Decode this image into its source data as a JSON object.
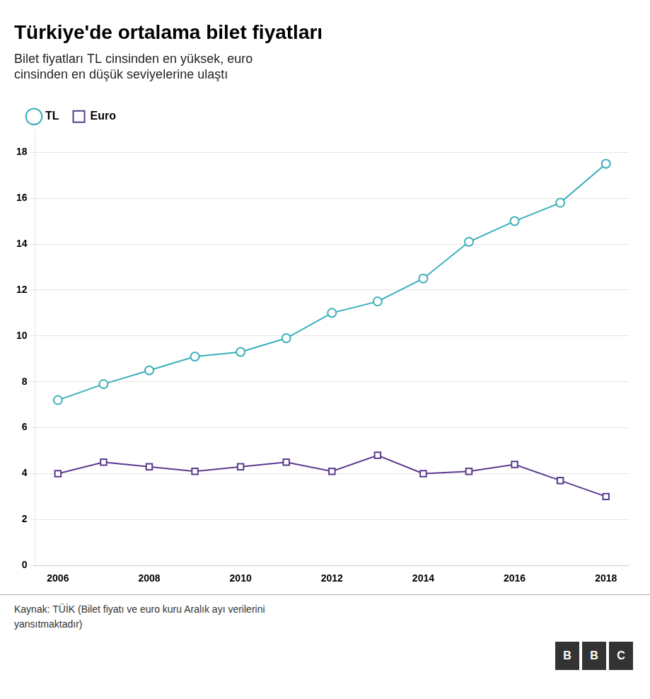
{
  "chart_data": {
    "type": "line",
    "title": "Türkiye'de ortalama bilet fiyatları",
    "subtitle": "Bilet fiyatları TL cinsinden en yüksek, euro\ncinsinden en düşük seviyelerine ulaştı",
    "footer": "Kaynak: TÜİK (Bilet fiyatı ve euro kuru Aralık ayı verilerini\nyansıtmaktadır)",
    "logo": "BBC",
    "x": [
      2006,
      2007,
      2008,
      2009,
      2010,
      2011,
      2012,
      2013,
      2014,
      2015,
      2016,
      2017,
      2018
    ],
    "series": [
      {
        "name": "TL",
        "color": "#3aafb9",
        "marker": "circle",
        "values": [
          7.2,
          7.9,
          8.5,
          9.1,
          9.3,
          9.9,
          11.0,
          11.5,
          12.5,
          14.1,
          15.0,
          15.8,
          17.5
        ]
      },
      {
        "name": "Euro",
        "color": "#5b3a8e",
        "marker": "square",
        "values": [
          4.0,
          4.5,
          4.3,
          4.1,
          4.3,
          4.5,
          4.1,
          4.8,
          4.0,
          4.1,
          4.4,
          3.7,
          3.0
        ]
      }
    ],
    "xlim": [
      2005.5,
      2018.5
    ],
    "xticks": [
      2006,
      2008,
      2010,
      2012,
      2014,
      2016,
      2018
    ],
    "ylim": [
      0,
      19
    ],
    "yticks": [
      0,
      2,
      4,
      6,
      8,
      10,
      12,
      14,
      16,
      18
    ],
    "grid": true,
    "legend": "top-left"
  }
}
